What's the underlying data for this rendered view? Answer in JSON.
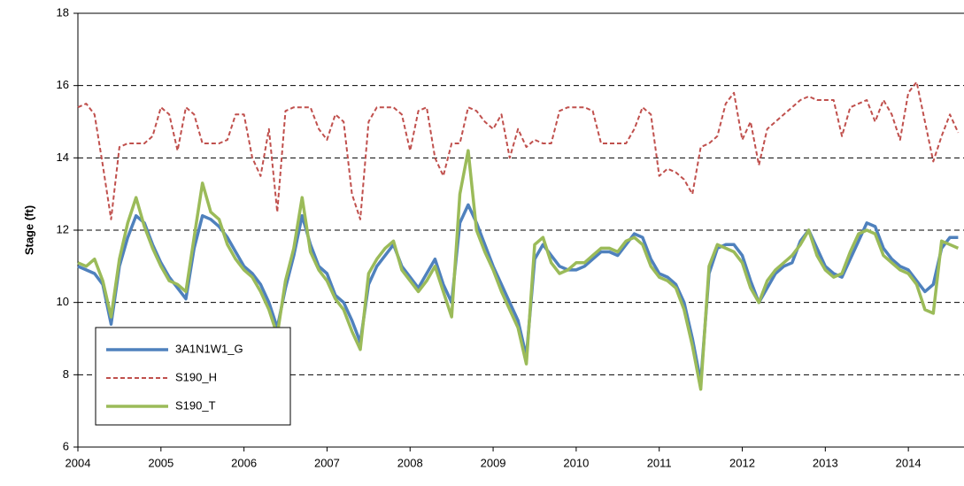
{
  "chart_data": {
    "type": "line",
    "y_label": "Stage (ft)",
    "x": [
      2004.0,
      2004.1,
      2004.2,
      2004.3,
      2004.4,
      2004.5,
      2004.6,
      2004.7,
      2004.8,
      2004.9,
      2005.0,
      2005.1,
      2005.2,
      2005.3,
      2005.4,
      2005.5,
      2005.6,
      2005.7,
      2005.8,
      2005.9,
      2006.0,
      2006.1,
      2006.2,
      2006.3,
      2006.4,
      2006.5,
      2006.6,
      2006.7,
      2006.8,
      2006.9,
      2007.0,
      2007.1,
      2007.2,
      2007.3,
      2007.4,
      2007.5,
      2007.6,
      2007.7,
      2007.8,
      2007.9,
      2008.0,
      2008.1,
      2008.2,
      2008.3,
      2008.4,
      2008.5,
      2008.6,
      2008.7,
      2008.8,
      2008.9,
      2009.0,
      2009.1,
      2009.2,
      2009.3,
      2009.4,
      2009.5,
      2009.6,
      2009.7,
      2009.8,
      2009.9,
      2010.0,
      2010.1,
      2010.2,
      2010.3,
      2010.4,
      2010.5,
      2010.6,
      2010.7,
      2010.8,
      2010.9,
      2011.0,
      2011.1,
      2011.2,
      2011.3,
      2011.4,
      2011.5,
      2011.6,
      2011.7,
      2011.8,
      2011.9,
      2012.0,
      2012.1,
      2012.2,
      2012.3,
      2012.4,
      2012.5,
      2012.6,
      2012.7,
      2012.8,
      2012.9,
      2013.0,
      2013.1,
      2013.2,
      2013.3,
      2013.4,
      2013.5,
      2013.6,
      2013.7,
      2013.8,
      2013.9,
      2014.0,
      2014.1,
      2014.2,
      2014.3,
      2014.4,
      2014.5,
      2014.6
    ],
    "series": [
      {
        "name": "3A1N1W1_G",
        "color": "#4f81bd",
        "dash": "solid",
        "width": 3.5,
        "values": [
          11.0,
          10.9,
          10.8,
          10.5,
          9.4,
          11.0,
          11.8,
          12.4,
          12.2,
          11.6,
          11.1,
          10.7,
          10.4,
          10.1,
          11.5,
          12.4,
          12.3,
          12.1,
          11.8,
          11.4,
          11.0,
          10.8,
          10.5,
          10.0,
          9.3,
          10.4,
          11.3,
          12.4,
          11.6,
          11.0,
          10.8,
          10.2,
          10.0,
          9.5,
          8.9,
          10.5,
          11.0,
          11.3,
          11.6,
          11.0,
          10.7,
          10.4,
          10.8,
          11.2,
          10.5,
          10.0,
          12.2,
          12.7,
          12.2,
          11.6,
          11.0,
          10.5,
          10.0,
          9.5,
          8.5,
          11.2,
          11.6,
          11.3,
          11.0,
          10.9,
          10.9,
          11.0,
          11.2,
          11.4,
          11.4,
          11.3,
          11.6,
          11.9,
          11.8,
          11.2,
          10.8,
          10.7,
          10.5,
          10.0,
          9.0,
          7.8,
          10.8,
          11.5,
          11.6,
          11.6,
          11.3,
          10.6,
          10.0,
          10.4,
          10.8,
          11.0,
          11.1,
          11.7,
          12.0,
          11.5,
          11.0,
          10.8,
          10.7,
          11.2,
          11.7,
          12.2,
          12.1,
          11.5,
          11.2,
          11.0,
          10.9,
          10.6,
          10.3,
          10.5,
          11.5,
          11.8,
          11.8
        ]
      },
      {
        "name": "S190_H",
        "color": "#c0504d",
        "dash": "dashed",
        "width": 2,
        "values": [
          15.4,
          15.5,
          15.2,
          13.8,
          12.3,
          14.3,
          14.4,
          14.4,
          14.4,
          14.6,
          15.4,
          15.2,
          14.2,
          15.4,
          15.2,
          14.4,
          14.4,
          14.4,
          14.5,
          15.2,
          15.2,
          14.0,
          13.5,
          14.8,
          12.5,
          15.3,
          15.4,
          15.4,
          15.4,
          14.8,
          14.5,
          15.2,
          15.0,
          13.0,
          12.3,
          15.0,
          15.4,
          15.4,
          15.4,
          15.2,
          14.2,
          15.3,
          15.4,
          14.0,
          13.5,
          14.4,
          14.4,
          15.4,
          15.3,
          15.0,
          14.8,
          15.2,
          14.0,
          14.8,
          14.3,
          14.5,
          14.4,
          14.4,
          15.3,
          15.4,
          15.4,
          15.4,
          15.3,
          14.4,
          14.4,
          14.4,
          14.4,
          14.8,
          15.4,
          15.2,
          13.5,
          13.7,
          13.6,
          13.4,
          13.0,
          14.3,
          14.4,
          14.6,
          15.5,
          15.8,
          14.5,
          15.0,
          13.8,
          14.8,
          15.0,
          15.2,
          15.4,
          15.6,
          15.7,
          15.6,
          15.6,
          15.6,
          14.6,
          15.4,
          15.5,
          15.6,
          15.0,
          15.6,
          15.2,
          14.5,
          15.8,
          16.1,
          15.0,
          13.9,
          14.6,
          15.2,
          14.7
        ]
      },
      {
        "name": "S190_T",
        "color": "#9bbb59",
        "dash": "solid",
        "width": 3.5,
        "values": [
          11.1,
          11.0,
          11.2,
          10.6,
          9.6,
          11.2,
          12.2,
          12.9,
          12.1,
          11.5,
          11.0,
          10.6,
          10.5,
          10.3,
          11.8,
          13.3,
          12.5,
          12.3,
          11.6,
          11.2,
          10.9,
          10.7,
          10.3,
          9.8,
          9.1,
          10.6,
          11.5,
          12.9,
          11.4,
          10.9,
          10.6,
          10.1,
          9.8,
          9.2,
          8.7,
          10.8,
          11.2,
          11.5,
          11.7,
          10.9,
          10.6,
          10.3,
          10.6,
          11.0,
          10.3,
          9.6,
          13.0,
          14.2,
          12.0,
          11.4,
          10.9,
          10.3,
          9.8,
          9.3,
          8.3,
          11.6,
          11.8,
          11.1,
          10.8,
          10.9,
          11.1,
          11.1,
          11.3,
          11.5,
          11.5,
          11.4,
          11.7,
          11.8,
          11.6,
          11.0,
          10.7,
          10.6,
          10.4,
          9.8,
          8.8,
          7.6,
          11.0,
          11.6,
          11.5,
          11.4,
          11.1,
          10.4,
          10.0,
          10.6,
          10.9,
          11.1,
          11.3,
          11.6,
          12.0,
          11.3,
          10.9,
          10.7,
          10.8,
          11.4,
          11.9,
          12.0,
          11.9,
          11.3,
          11.1,
          10.9,
          10.8,
          10.5,
          9.8,
          9.7,
          11.7,
          11.6,
          11.5
        ]
      }
    ],
    "xlim": [
      2004,
      2014.67
    ],
    "xticks": [
      2004,
      2005,
      2006,
      2007,
      2008,
      2009,
      2010,
      2011,
      2012,
      2013,
      2014
    ],
    "ylim": [
      6,
      18
    ],
    "yticks": [
      6,
      8,
      10,
      12,
      14,
      16,
      18
    ],
    "grid": true,
    "legend": "lower-left"
  }
}
